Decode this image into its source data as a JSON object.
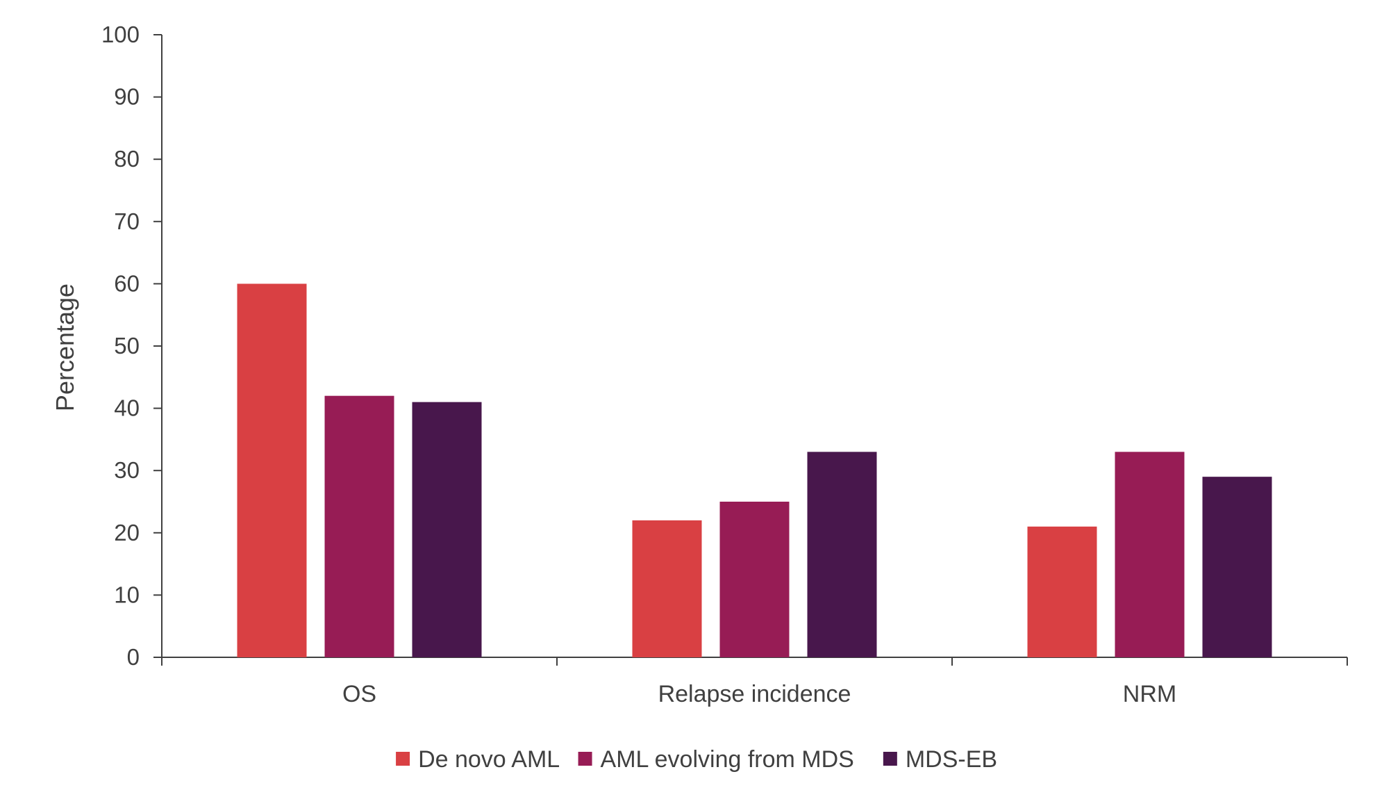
{
  "chart_data": {
    "type": "bar",
    "categories": [
      "OS",
      "Relapse incidence",
      "NRM"
    ],
    "series": [
      {
        "name": "De novo AML",
        "color": "#d94043",
        "values": [
          60,
          22,
          21
        ]
      },
      {
        "name": "AML evolving from MDS",
        "color": "#971c55",
        "values": [
          42,
          25,
          33
        ]
      },
      {
        "name": "MDS-EB",
        "color": "#48174c",
        "values": [
          41,
          33,
          29
        ]
      }
    ],
    "xlabel": "",
    "ylabel": "Percentage",
    "ylim": [
      0,
      100
    ],
    "yticks": [
      0,
      10,
      20,
      30,
      40,
      50,
      60,
      70,
      80,
      90,
      100
    ],
    "grid": false,
    "legend_position": "bottom"
  }
}
